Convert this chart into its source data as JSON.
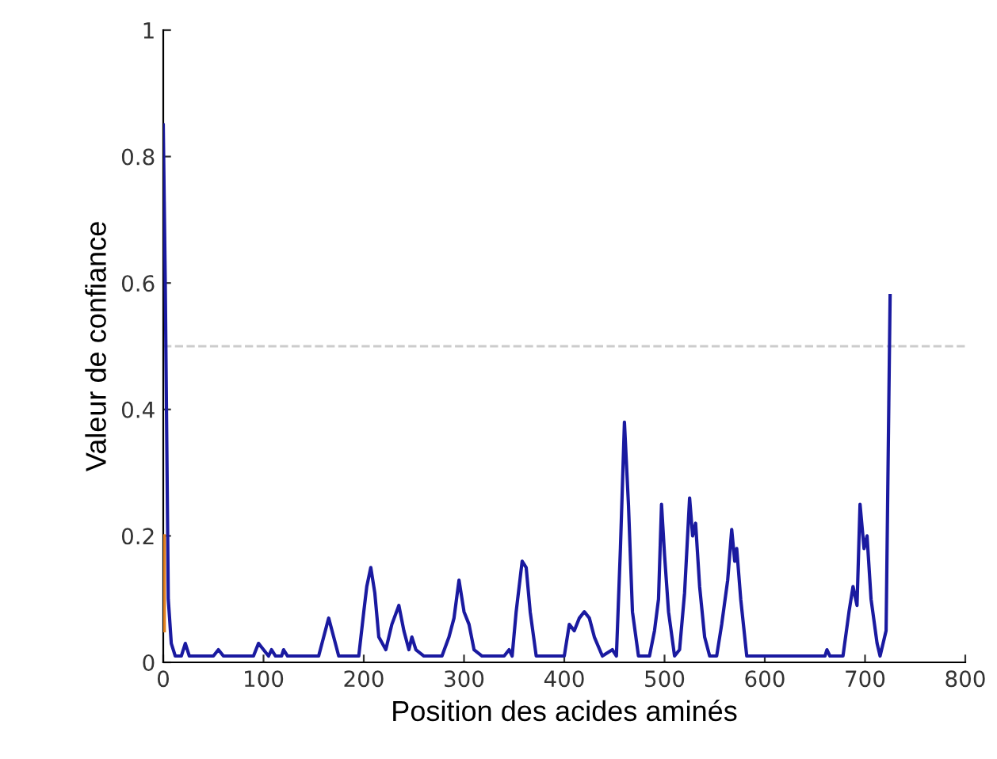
{
  "chart_data": {
    "type": "line",
    "xlabel": "Position des acides aminés",
    "ylabel": "Valeur de confiance",
    "xlim": [
      0,
      800
    ],
    "ylim": [
      0,
      1
    ],
    "xticks": [
      0,
      100,
      200,
      300,
      400,
      500,
      600,
      700,
      800
    ],
    "yticks": [
      0,
      0.2,
      0.4,
      0.6,
      0.8,
      1
    ],
    "grid": false,
    "legend": false,
    "marker": "none",
    "line_style": "solid",
    "ref_lines": [
      {
        "axis": "y",
        "value": 0.5,
        "color": "#cccccc",
        "line_style": "dashed"
      }
    ],
    "series": [
      {
        "color": "#1a1aa0",
        "x": [
          0,
          2,
          5,
          8,
          12,
          18,
          22,
          26,
          30,
          50,
          55,
          60,
          90,
          95,
          100,
          105,
          108,
          112,
          118,
          120,
          124,
          130,
          155,
          160,
          165,
          170,
          175,
          195,
          200,
          203,
          207,
          211,
          215,
          222,
          228,
          235,
          240,
          245,
          248,
          252,
          260,
          278,
          285,
          290,
          295,
          300,
          305,
          310,
          318,
          340,
          345,
          348,
          352,
          358,
          362,
          366,
          372,
          400,
          405,
          410,
          415,
          420,
          425,
          430,
          438,
          448,
          452,
          456,
          460,
          464,
          468,
          474,
          485,
          490,
          494,
          497,
          500,
          504,
          510,
          515,
          520,
          525,
          528,
          531,
          535,
          540,
          545,
          552,
          557,
          563,
          567,
          570,
          572,
          576,
          582,
          660,
          662,
          665,
          678,
          684,
          688,
          692,
          695,
          699,
          702,
          706,
          712,
          715,
          718,
          721,
          725
        ],
        "values": [
          0.85,
          0.6,
          0.1,
          0.03,
          0.01,
          0.01,
          0.03,
          0.01,
          0.01,
          0.01,
          0.02,
          0.01,
          0.01,
          0.03,
          0.02,
          0.01,
          0.02,
          0.01,
          0.01,
          0.02,
          0.01,
          0.01,
          0.01,
          0.04,
          0.07,
          0.04,
          0.01,
          0.01,
          0.08,
          0.12,
          0.15,
          0.11,
          0.04,
          0.02,
          0.06,
          0.09,
          0.05,
          0.02,
          0.04,
          0.02,
          0.01,
          0.01,
          0.04,
          0.07,
          0.13,
          0.08,
          0.06,
          0.02,
          0.01,
          0.01,
          0.02,
          0.01,
          0.08,
          0.16,
          0.15,
          0.08,
          0.01,
          0.01,
          0.06,
          0.05,
          0.07,
          0.08,
          0.07,
          0.04,
          0.01,
          0.02,
          0.01,
          0.18,
          0.38,
          0.25,
          0.08,
          0.01,
          0.01,
          0.05,
          0.1,
          0.25,
          0.17,
          0.08,
          0.01,
          0.02,
          0.11,
          0.26,
          0.2,
          0.22,
          0.12,
          0.04,
          0.01,
          0.01,
          0.06,
          0.13,
          0.21,
          0.16,
          0.18,
          0.1,
          0.01,
          0.01,
          0.02,
          0.01,
          0.01,
          0.08,
          0.12,
          0.09,
          0.25,
          0.18,
          0.2,
          0.1,
          0.03,
          0.01,
          0.03,
          0.05,
          0.58
        ]
      },
      {
        "color": "#e08020",
        "x": [
          1,
          1
        ],
        "values": [
          0.2,
          0.05
        ]
      }
    ]
  }
}
